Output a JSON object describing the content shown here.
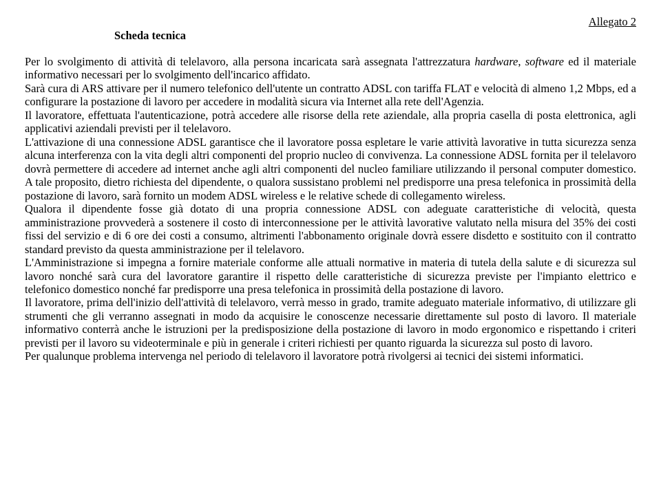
{
  "header": {
    "annex": "Allegato 2",
    "subtitle": "Scheda tecnica"
  },
  "body": {
    "p1a": "Per lo svolgimento di attività di telelavoro, alla persona incaricata sarà assegnata l'attrezzatura ",
    "italic1": "hardware",
    "p1b": ", ",
    "italic2": "software",
    "p1c": " ed il materiale informativo necessari per lo svolgimento dell'incarico affidato.",
    "p2": "Sarà cura di ARS attivare per il numero telefonico dell'utente un contratto ADSL con tariffa FLAT e velocità di almeno 1,2 Mbps, ed a configurare la postazione di lavoro per accedere in modalità sicura via Internet alla rete dell'Agenzia.",
    "p3": "Il lavoratore, effettuata l'autenticazione, potrà accedere alle risorse della rete aziendale, alla propria casella di posta elettronica, agli applicativi aziendali previsti per il telelavoro.",
    "p4": "L'attivazione di una connessione ADSL garantisce che il lavoratore possa espletare le varie attività lavorative in tutta sicurezza senza alcuna interferenza con la vita degli altri componenti del proprio nucleo di convivenza. La connessione ADSL fornita per il telelavoro dovrà permettere di accedere ad internet anche agli altri componenti del nucleo familiare utilizzando il personal computer domestico. A tale proposito, dietro richiesta del dipendente, o qualora sussistano problemi nel predisporre una presa telefonica in prossimità della postazione di lavoro, sarà fornito un modem ADSL wireless e le relative schede di collegamento wireless.",
    "p5": "Qualora il dipendente fosse già dotato di una propria connessione ADSL con adeguate caratteristiche di velocità, questa amministrazione provvederà a sostenere il costo di interconnessione per le attività lavorative valutato nella misura del 35% dei costi fissi del servizio e di 6 ore dei costi a consumo, altrimenti l'abbonamento originale dovrà essere disdetto e sostituito con il contratto standard previsto da questa amministrazione per il telelavoro.",
    "p6": "L'Amministrazione si impegna a fornire materiale conforme alle attuali normative in materia di tutela della salute e di sicurezza sul lavoro nonché sarà cura del lavoratore garantire il rispetto delle caratteristiche di sicurezza previste per l'impianto elettrico e telefonico domestico nonché far predisporre una presa telefonica in prossimità della postazione di lavoro.",
    "p7": "Il lavoratore, prima dell'inizio dell'attività di telelavoro, verrà messo in grado, tramite adeguato materiale informativo, di utilizzare gli strumenti che gli verranno assegnati in modo da acquisire le conoscenze necessarie direttamente sul posto di lavoro. Il materiale informativo conterrà anche le istruzioni per la predisposizione della postazione di lavoro in modo ergonomico e rispettando i criteri previsti per il lavoro su videoterminale e più in generale i criteri richiesti per quanto riguarda la sicurezza sul posto di lavoro.",
    "p8": "Per qualunque problema intervenga nel periodo di telelavoro il lavoratore potrà rivolgersi ai tecnici dei sistemi informatici."
  }
}
